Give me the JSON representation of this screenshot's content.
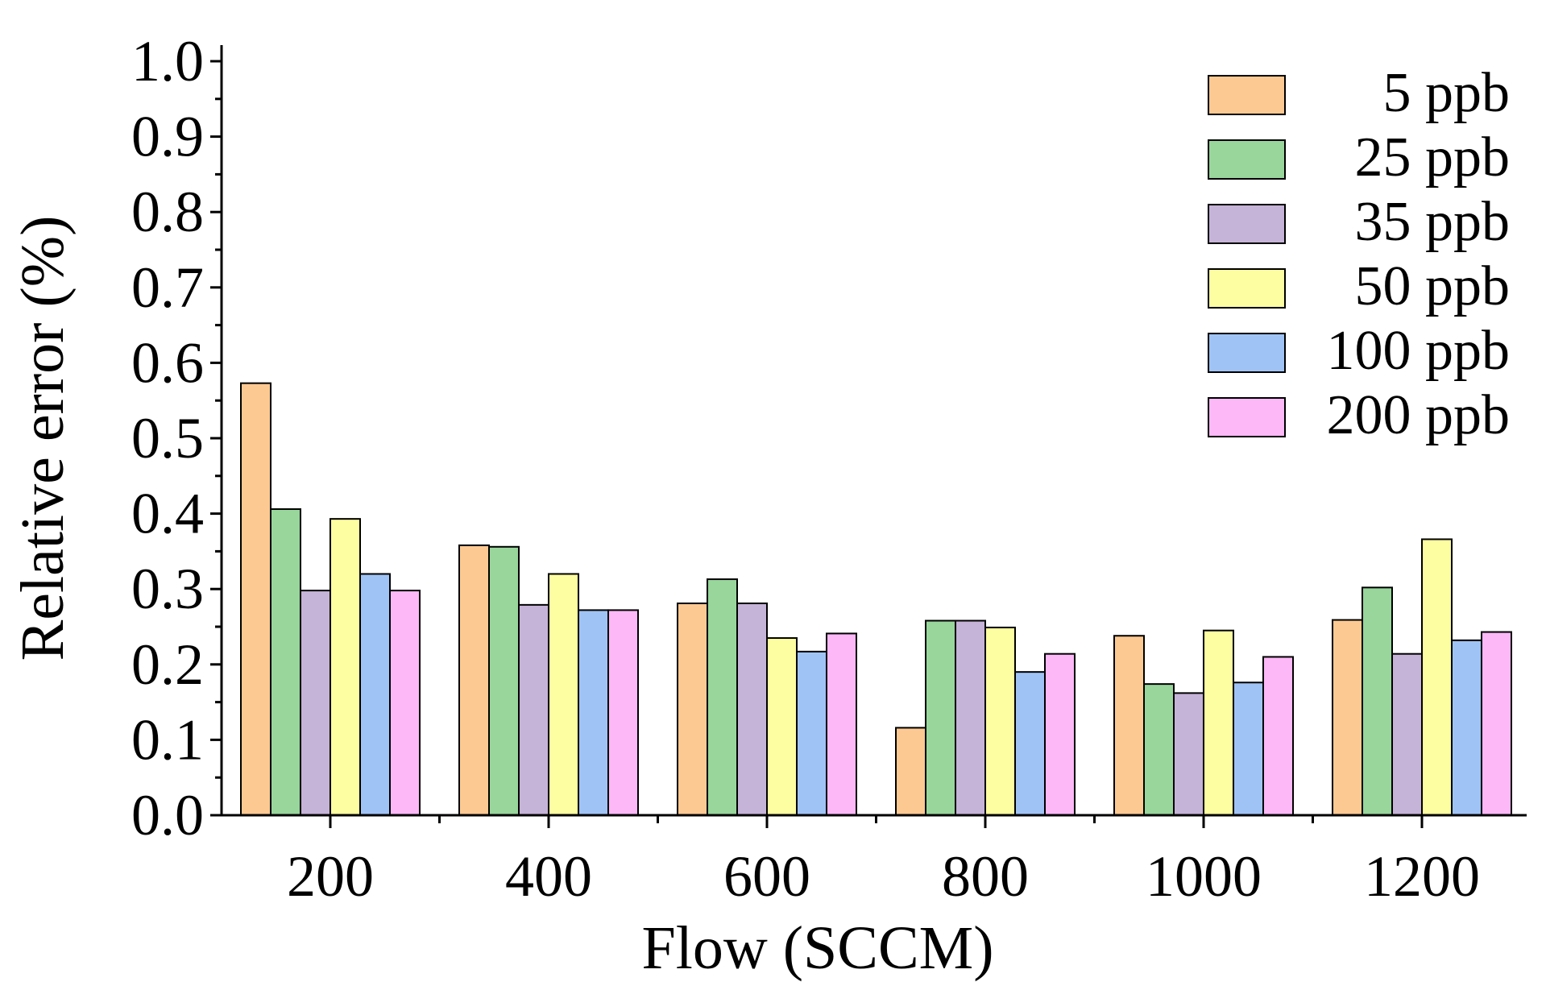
{
  "chart_data": {
    "type": "bar",
    "title": "",
    "xlabel": "Flow (SCCM)",
    "ylabel": "Relative error (%)",
    "ylim": [
      0,
      1.0
    ],
    "ytick_step": 0.1,
    "ytick_labels": [
      "0.0",
      "0.1",
      "0.2",
      "0.3",
      "0.4",
      "0.5",
      "0.6",
      "0.7",
      "0.8",
      "0.9",
      "1.0"
    ],
    "categories": [
      "200",
      "400",
      "600",
      "800",
      "1000",
      "1200"
    ],
    "legend_position": "top-right",
    "grid": false,
    "series": [
      {
        "name": "5 ppb",
        "color": "#fdc992",
        "values": [
          0.573,
          0.358,
          0.281,
          0.116,
          0.238,
          0.259
        ]
      },
      {
        "name": "25 ppb",
        "color": "#98d69c",
        "values": [
          0.406,
          0.356,
          0.313,
          0.258,
          0.174,
          0.302
        ]
      },
      {
        "name": "35 ppb",
        "color": "#c6b3d8",
        "values": [
          0.298,
          0.279,
          0.281,
          0.258,
          0.162,
          0.214
        ]
      },
      {
        "name": "50 ppb",
        "color": "#fdfda1",
        "values": [
          0.393,
          0.32,
          0.235,
          0.249,
          0.245,
          0.366
        ]
      },
      {
        "name": "100 ppb",
        "color": "#a0c3f6",
        "values": [
          0.32,
          0.272,
          0.217,
          0.19,
          0.176,
          0.232
        ]
      },
      {
        "name": "200 ppb",
        "color": "#fdb8f7",
        "values": [
          0.298,
          0.272,
          0.241,
          0.214,
          0.21,
          0.243
        ]
      }
    ]
  }
}
